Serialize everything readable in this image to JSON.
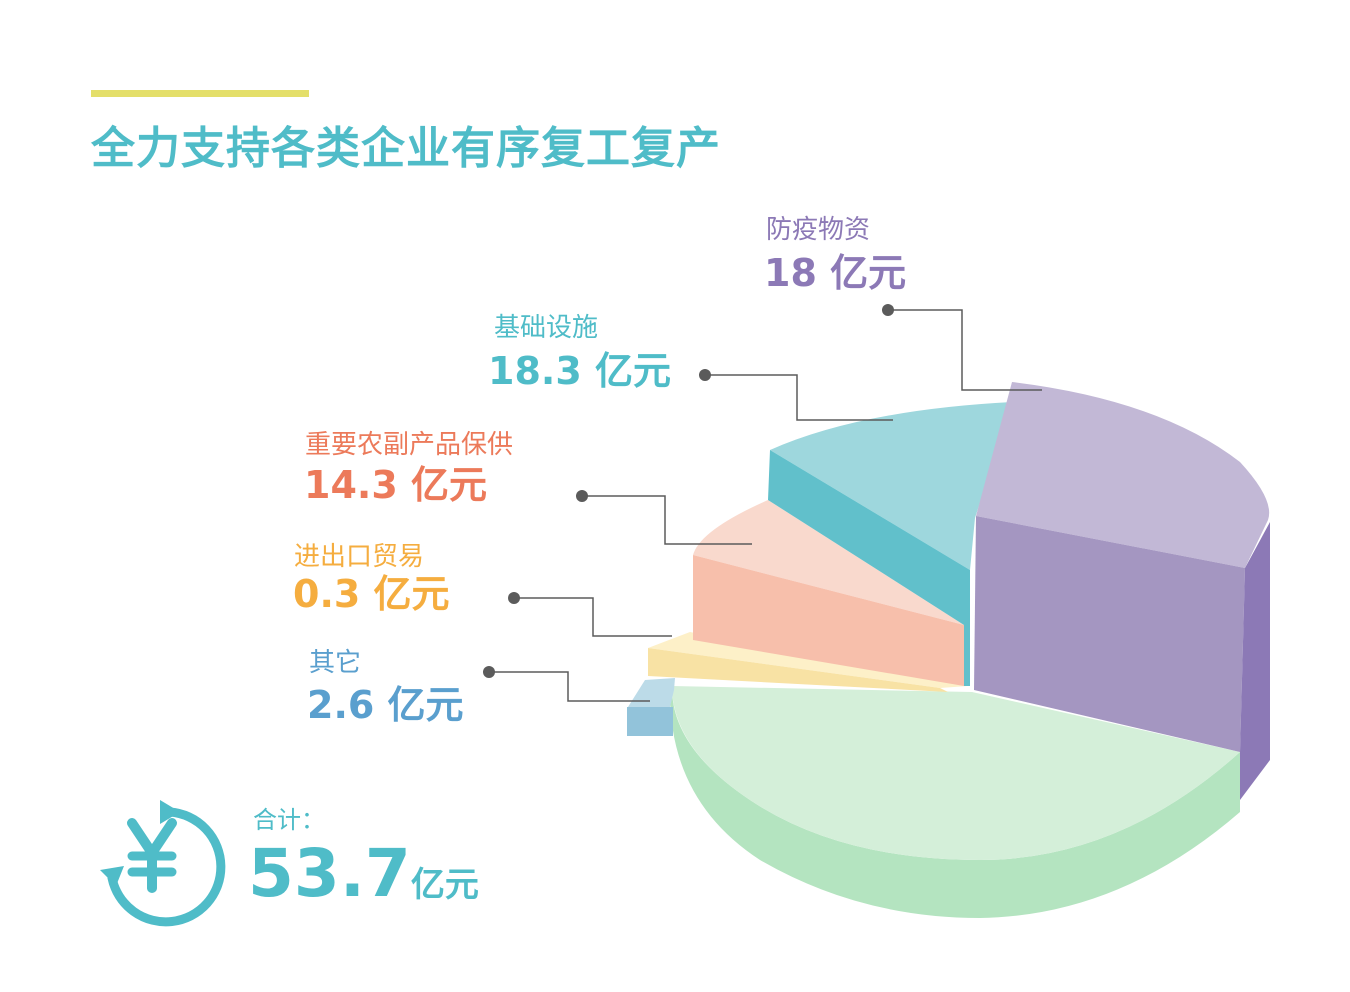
{
  "title": "全力支持各类企业有序复工复产",
  "total": {
    "label": "合计：",
    "value": "53.7",
    "unit": "亿元"
  },
  "icon": "yen-circle-icon",
  "chart_data": {
    "type": "pie",
    "title": "全力支持各类企业有序复工复产",
    "unit": "亿元",
    "slices": [
      {
        "name": "防疫物资",
        "value": 18,
        "value_label": "18 亿元",
        "color": "#a598c3",
        "text_color": "#8c79b6"
      },
      {
        "name": "基础设施",
        "value": 18.3,
        "value_label": "18.3 亿元",
        "color": "#9cd6dc",
        "text_color": "#4fbcc8"
      },
      {
        "name": "重要农副产品保供",
        "value": 14.3,
        "value_label": "14.3 亿元",
        "color": "#f7c2b0",
        "text_color": "#ec7a5a"
      },
      {
        "name": "进出口贸易",
        "value": 0.3,
        "value_label": "0.3 亿元",
        "color": "#fbe8b0",
        "text_color": "#f5ad3f"
      },
      {
        "name": "其它",
        "value": 2.6,
        "value_label": "2.6 亿元",
        "color": "#a7cfe0",
        "text_color": "#5a9fce"
      }
    ],
    "green_segment_color": "#b9e6c5"
  }
}
